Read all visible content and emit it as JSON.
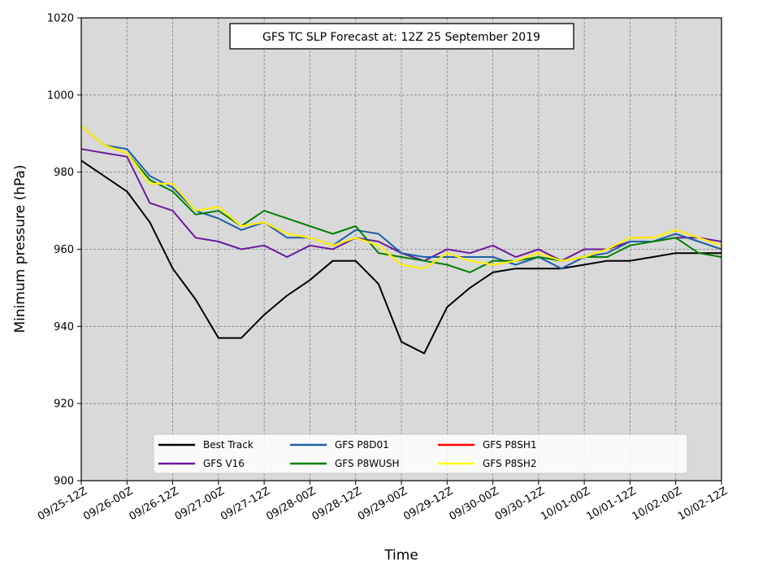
{
  "chart_data": {
    "type": "line",
    "title": "GFS TC SLP Forecast at: 12Z 25 September 2019",
    "xlabel": "Time",
    "ylabel": "Minimum pressure (hPa)",
    "ylim": [
      900,
      1020
    ],
    "yticks": [
      900,
      920,
      940,
      960,
      980,
      1000,
      1020
    ],
    "x_tick_labels": [
      "09/25-12Z",
      "09/26-00Z",
      "09/26-12Z",
      "09/27-00Z",
      "09/27-12Z",
      "09/28-00Z",
      "09/28-12Z",
      "09/29-00Z",
      "09/29-12Z",
      "09/30-00Z",
      "09/30-12Z",
      "10/01-00Z",
      "10/01-12Z",
      "10/02-00Z",
      "10/02-12Z"
    ],
    "x_step_hours": 6,
    "grid": true,
    "legend_position": "bottom-center",
    "series": [
      {
        "name": "Best Track",
        "color": "#000000",
        "values": [
          983,
          979,
          975,
          967,
          955,
          947,
          937,
          937,
          943,
          948,
          952,
          957,
          957,
          951,
          936,
          933,
          945,
          950,
          954,
          955,
          955,
          955,
          956,
          957,
          957,
          958,
          959,
          959,
          959
        ]
      },
      {
        "name": "GFS V16",
        "color": "#6a1b9a",
        "values": [
          986,
          985,
          984,
          972,
          970,
          963,
          962,
          960,
          961,
          958,
          961,
          960,
          963,
          962,
          959,
          957,
          960,
          959,
          961,
          958,
          960,
          957,
          960,
          960,
          962,
          962,
          963,
          963,
          962
        ]
      },
      {
        "name": "GFS P8D01",
        "color": "#1f5fa8",
        "values": [
          992,
          987,
          986,
          979,
          976,
          970,
          968,
          965,
          967,
          963,
          963,
          961,
          965,
          964,
          959,
          958,
          958,
          958,
          958,
          956,
          958,
          955,
          958,
          959,
          962,
          962,
          964,
          962,
          960
        ]
      },
      {
        "name": "GFS P8WUSH",
        "color": "#008000",
        "values": [
          992,
          987,
          985,
          978,
          975,
          969,
          970,
          966,
          970,
          968,
          966,
          964,
          966,
          959,
          958,
          957,
          956,
          954,
          957,
          957,
          958,
          957,
          958,
          958,
          961,
          962,
          963,
          959,
          958
        ]
      },
      {
        "name": "GFS P8SH1",
        "color": "#ff0000",
        "values": [
          992,
          987,
          985,
          977,
          977,
          970,
          971,
          966,
          967,
          964,
          963,
          961,
          963,
          961,
          956,
          955,
          959,
          957,
          956,
          957,
          959,
          957,
          958,
          960,
          963,
          963,
          965,
          963,
          961
        ]
      },
      {
        "name": "GFS P8SH2",
        "color": "#ffff00",
        "values": [
          992,
          987,
          985,
          977,
          977,
          970,
          971,
          966,
          967,
          964,
          963,
          961,
          963,
          961,
          956,
          955,
          959,
          957,
          956,
          957,
          959,
          957,
          958,
          960,
          963,
          963,
          965,
          963,
          961
        ]
      }
    ]
  }
}
